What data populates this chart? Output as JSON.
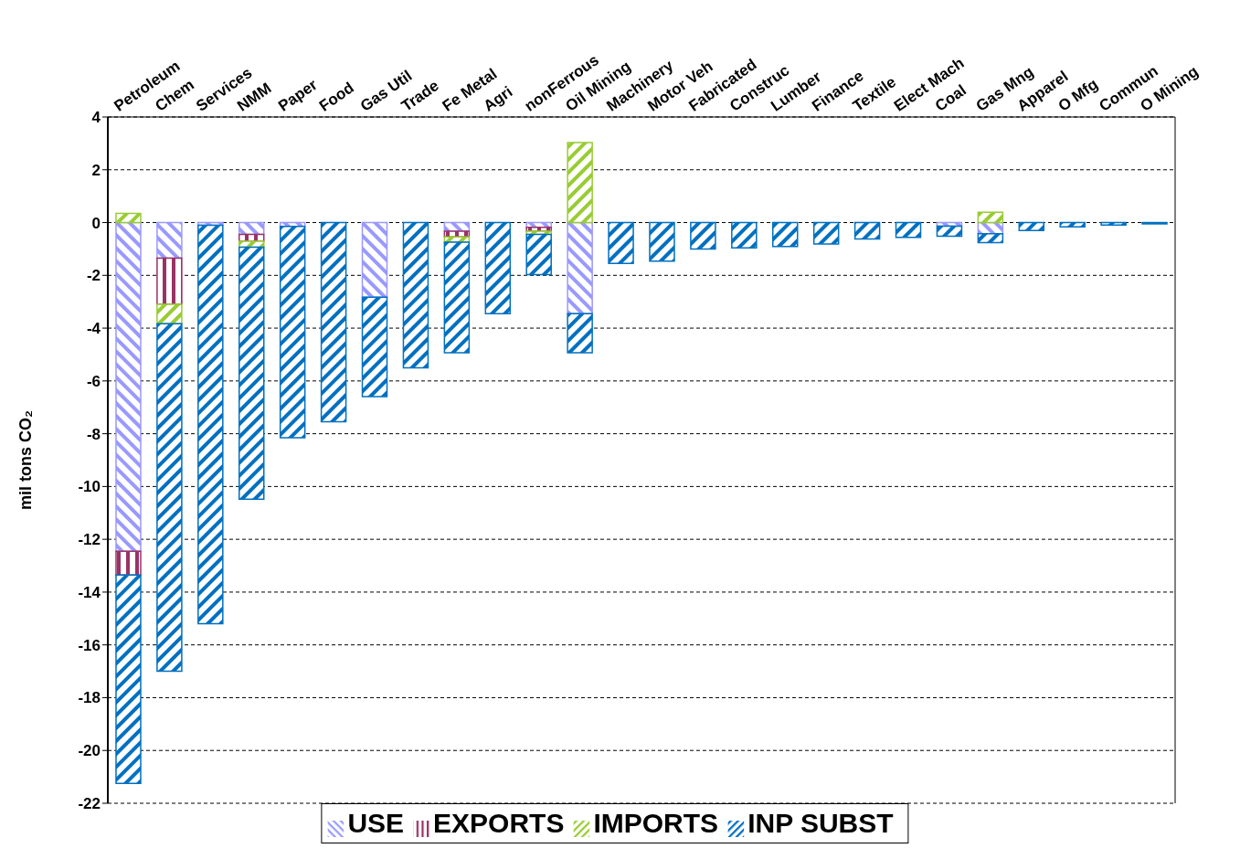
{
  "chart_data": {
    "type": "bar",
    "stacked": true,
    "ylabel": "mil tons CO₂",
    "categories": [
      "Petroleum",
      "Chem",
      "Services",
      "NMM",
      "Paper",
      "Food",
      "Gas Util",
      "Trade",
      "Fe Metal",
      "Agri",
      "nonFerrous",
      "Oil Mining",
      "Machinery",
      "Motor Veh",
      "Fabricated",
      "Construc",
      "Lumber",
      "Finance",
      "Textile",
      "Elect Mach",
      "Coal",
      "Gas Mng",
      "Apparel",
      "O Mfg",
      "Commun",
      "O Mining"
    ],
    "series": [
      {
        "name": "USE",
        "color": "#9999ff",
        "values": [
          -12.45,
          -1.35,
          -0.1,
          -0.45,
          -0.15,
          null,
          -2.83,
          null,
          -0.33,
          null,
          -0.18,
          -3.45,
          null,
          null,
          null,
          null,
          null,
          null,
          null,
          null,
          -0.14,
          -0.42,
          null,
          null,
          null,
          null
        ]
      },
      {
        "name": "EXPORTS",
        "color": "#993366",
        "values": [
          -0.9,
          -1.75,
          null,
          -0.26,
          null,
          null,
          null,
          null,
          -0.21,
          null,
          -0.15,
          null,
          null,
          null,
          null,
          null,
          null,
          null,
          null,
          null,
          null,
          null,
          null,
          null,
          null,
          null
        ]
      },
      {
        "name": "IMPORTS",
        "color": "#99cc33",
        "values": [
          0.35,
          -0.73,
          null,
          -0.22,
          null,
          null,
          null,
          null,
          -0.2,
          null,
          -0.12,
          3.03,
          null,
          null,
          null,
          null,
          null,
          null,
          null,
          null,
          null,
          0.39,
          null,
          null,
          null,
          null
        ]
      },
      {
        "name": "INP SUBST",
        "color": "#0070c0",
        "values": [
          -7.9,
          -13.17,
          -15.1,
          -9.55,
          -8.0,
          -7.55,
          -3.76,
          -5.5,
          -4.19,
          -3.45,
          -1.52,
          -1.48,
          -1.55,
          -1.46,
          -1.0,
          -0.96,
          -0.91,
          -0.81,
          -0.62,
          -0.56,
          -0.38,
          -0.34,
          -0.3,
          -0.16,
          -0.09,
          -0.05
        ]
      }
    ],
    "ylim": [
      -22,
      4
    ],
    "yticks": [
      -22,
      -20,
      -18,
      -16,
      -14,
      -12,
      -10,
      -8,
      -6,
      -4,
      -2,
      0,
      2,
      4
    ],
    "grid": "y",
    "legend": "bottom"
  }
}
